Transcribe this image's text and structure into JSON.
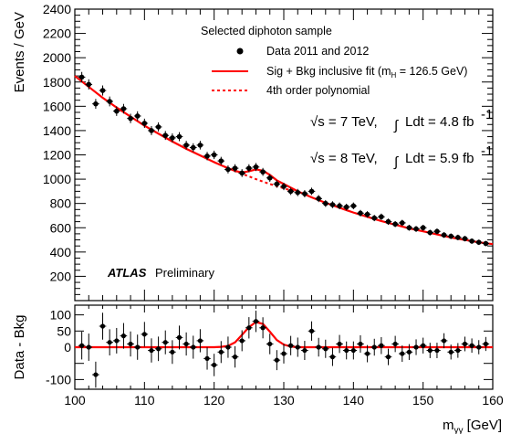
{
  "chart_data": [
    {
      "type": "scatter",
      "panel": "main",
      "ylabel": "Events / GeV",
      "xlim": [
        100,
        160
      ],
      "ylim": [
        0,
        2400
      ],
      "yticks": [
        "200",
        "400",
        "600",
        "800",
        "1000",
        "1200",
        "1400",
        "1600",
        "1800",
        "2000",
        "2200",
        "2400"
      ],
      "legend": {
        "title": "Selected diphoton sample",
        "data_label": "Data 2011 and 2012",
        "fit_label": "Sig + Bkg inclusive fit (m",
        "fit_sub": "H",
        "fit_label_tail": " = 126.5 GeV)",
        "poly_label": "4th order polynomial"
      },
      "annotations": {
        "energy1_sqrt": "√s = 7 TeV,",
        "energy1_int": "∫",
        "energy1_lumi": "Ldt = 4.8 fb",
        "energy1_exp": "-1",
        "energy2_sqrt": "√s = 8 TeV,",
        "energy2_int": "∫",
        "energy2_lumi": "Ldt = 5.9 fb",
        "energy2_exp": "-1",
        "experiment": "ATLAS",
        "status": "Preliminary"
      },
      "colors": {
        "fit": "#ff0000",
        "data": "#000000"
      },
      "series": [
        {
          "name": "Data 2011 and 2012",
          "x": [
            101,
            102,
            103,
            104,
            105,
            106,
            107,
            108,
            109,
            110,
            111,
            112,
            113,
            114,
            115,
            116,
            117,
            118,
            119,
            120,
            121,
            122,
            123,
            124,
            125,
            126,
            127,
            128,
            129,
            130,
            131,
            132,
            133,
            134,
            135,
            136,
            137,
            138,
            139,
            140,
            141,
            142,
            143,
            144,
            145,
            146,
            147,
            148,
            149,
            150,
            151,
            152,
            153,
            154,
            155,
            156,
            157,
            158,
            159
          ],
          "y": [
            1840,
            1780,
            1620,
            1730,
            1640,
            1560,
            1580,
            1500,
            1520,
            1460,
            1400,
            1430,
            1360,
            1340,
            1350,
            1280,
            1260,
            1280,
            1190,
            1200,
            1150,
            1080,
            1090,
            1050,
            1090,
            1100,
            1060,
            1010,
            960,
            940,
            900,
            890,
            880,
            900,
            840,
            800,
            790,
            780,
            770,
            780,
            720,
            710,
            680,
            690,
            650,
            630,
            640,
            600,
            590,
            600,
            560,
            570,
            540,
            530,
            520,
            510,
            490,
            480,
            470
          ]
        }
      ],
      "fit_sig_bkg": {
        "x": [
          100,
          102,
          104,
          106,
          108,
          110,
          112,
          114,
          116,
          118,
          120,
          122,
          123,
          124,
          125,
          126,
          127,
          128,
          129,
          130,
          132,
          134,
          136,
          138,
          140,
          142,
          144,
          146,
          148,
          150,
          152,
          154,
          156,
          158,
          160
        ],
        "y": [
          1850,
          1760,
          1670,
          1590,
          1515,
          1440,
          1375,
          1310,
          1250,
          1195,
          1140,
          1090,
          1068,
          1055,
          1065,
          1080,
          1070,
          1035,
          990,
          960,
          900,
          850,
          805,
          765,
          725,
          690,
          655,
          625,
          595,
          570,
          545,
          520,
          500,
          480,
          465
        ]
      },
      "fit_poly": {
        "x": [
          120,
          122,
          124,
          126,
          128,
          130,
          132
        ],
        "y": [
          1140,
          1090,
          1045,
          1000,
          960,
          925,
          890
        ]
      }
    },
    {
      "type": "scatter",
      "panel": "residual",
      "ylabel": "Data - Bkg",
      "xlabel_main": "m",
      "xlabel_sub": "γγ",
      "xlabel_unit": " [GeV]",
      "xlim": [
        100,
        160
      ],
      "ylim": [
        -130,
        130
      ],
      "yticks": [
        "-100",
        "0",
        "50",
        "100"
      ],
      "xticks": [
        "100",
        "110",
        "120",
        "130",
        "140",
        "150",
        "160"
      ],
      "series": [
        {
          "name": "Data - Bkg",
          "x": [
            101,
            102,
            103,
            104,
            105,
            106,
            107,
            108,
            109,
            110,
            111,
            112,
            113,
            114,
            115,
            116,
            117,
            118,
            119,
            120,
            121,
            122,
            123,
            124,
            125,
            126,
            127,
            128,
            129,
            130,
            131,
            132,
            133,
            134,
            135,
            136,
            137,
            138,
            139,
            140,
            141,
            142,
            143,
            144,
            145,
            146,
            147,
            148,
            149,
            150,
            151,
            152,
            153,
            154,
            155,
            156,
            157,
            158,
            159
          ],
          "y": [
            5,
            0,
            -85,
            65,
            15,
            20,
            35,
            10,
            0,
            40,
            -10,
            -5,
            15,
            -15,
            30,
            10,
            0,
            20,
            -35,
            -55,
            -15,
            0,
            -30,
            20,
            60,
            80,
            60,
            10,
            -40,
            -20,
            5,
            0,
            -10,
            50,
            0,
            -5,
            -30,
            10,
            -10,
            -10,
            10,
            -20,
            0,
            5,
            -30,
            10,
            -20,
            -15,
            0,
            5,
            -10,
            -10,
            20,
            -15,
            -10,
            10,
            5,
            0,
            10
          ]
        }
      ],
      "fit_curve": {
        "x": [
          100,
          120,
          121,
          122,
          123,
          124,
          125,
          126,
          127,
          128,
          129,
          130,
          131,
          132,
          160
        ],
        "y": [
          0,
          0,
          1,
          4,
          15,
          38,
          62,
          78,
          72,
          48,
          22,
          8,
          2,
          0,
          0
        ]
      }
    }
  ]
}
